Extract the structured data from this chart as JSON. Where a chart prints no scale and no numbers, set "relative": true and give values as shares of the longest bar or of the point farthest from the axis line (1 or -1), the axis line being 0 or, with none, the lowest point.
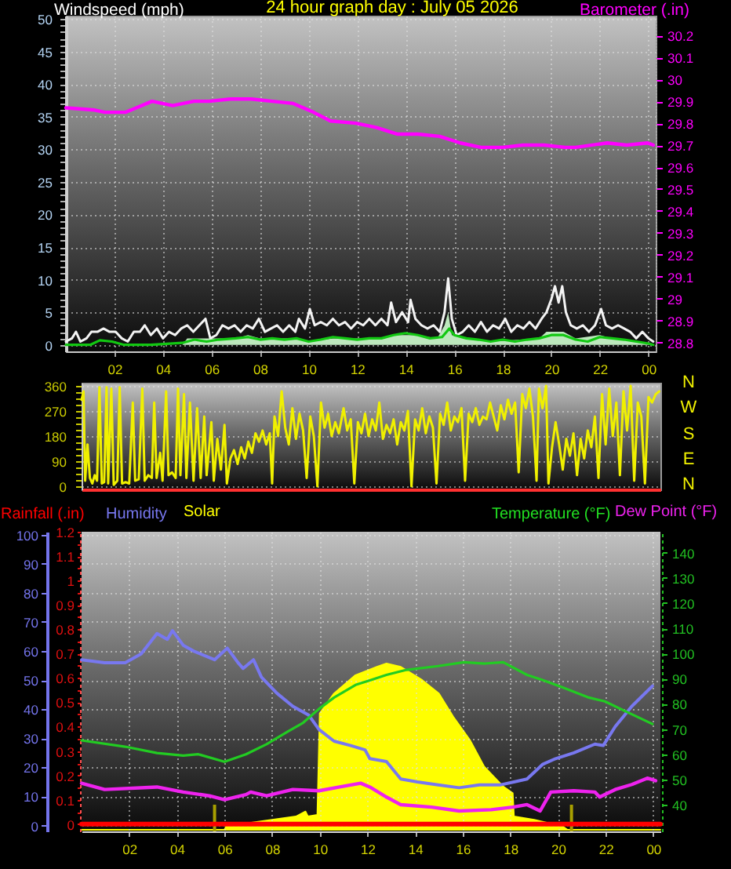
{
  "chart_data": [
    {
      "type": "line",
      "title": "24 hour graph day : July 05 2026",
      "ylabel": "Windspeed (mph)",
      "y2label": "Barometer (.in)",
      "series": [
        {
          "type": "area",
          "color": "#bde8bd",
          "x": [
            "2026-07-05T00:00",
            "2026-07-05T04:48",
            "2026-07-05T05:00",
            "2026-07-05T07:00",
            "2026-07-05T07:30",
            "2026-07-05T08:00",
            "2026-07-05T09:30",
            "2026-07-05T10:00",
            "2026-07-05T11:00",
            "2026-07-05T13:00",
            "2026-07-05T13:30",
            "2026-07-05T14:30",
            "2026-07-05T15:18",
            "2026-07-05T15:36",
            "2026-07-05T15:45",
            "2026-07-05T15:54",
            "2026-07-05T16:30",
            "2026-07-05T17:30",
            "2026-07-05T19:30",
            "2026-07-05T19:48",
            "2026-07-05T20:30",
            "2026-07-05T21:00",
            "2026-07-05T22:00",
            "2026-07-05T22:30",
            "2026-07-05T23:30",
            "2026-07-06T00:12"
          ],
          "values": [
            0,
            0,
            1,
            1,
            1.5,
            1,
            1,
            0.5,
            1,
            1,
            1.5,
            1.5,
            1,
            3,
            5,
            1.5,
            1,
            0.5,
            1,
            2,
            2,
            1,
            1.5,
            1,
            0.5,
            0
          ]
        },
        {
          "color": "#f4f4f4",
          "x": [
            "2026-07-05T00:00",
            "2026-07-05T00:15",
            "2026-07-05T00:25",
            "2026-07-05T00:36",
            "2026-07-05T00:51",
            "2026-07-05T01:03",
            "2026-07-05T01:18",
            "2026-07-05T01:33",
            "2026-07-05T01:48",
            "2026-07-05T02:03",
            "2026-07-05T02:18",
            "2026-07-05T02:33",
            "2026-07-05T02:48",
            "2026-07-05T03:03",
            "2026-07-05T03:15",
            "2026-07-05T03:30",
            "2026-07-05T03:45",
            "2026-07-05T04:00",
            "2026-07-05T04:15",
            "2026-07-05T04:30",
            "2026-07-05T04:45",
            "2026-07-05T05:00",
            "2026-07-05T05:15",
            "2026-07-05T05:30",
            "2026-07-05T05:45",
            "2026-07-05T05:57",
            "2026-07-05T06:12",
            "2026-07-05T06:27",
            "2026-07-05T06:42",
            "2026-07-05T06:57",
            "2026-07-05T07:12",
            "2026-07-05T07:27",
            "2026-07-05T07:42",
            "2026-07-05T07:57",
            "2026-07-05T08:12",
            "2026-07-05T08:27",
            "2026-07-05T08:42",
            "2026-07-05T08:57",
            "2026-07-05T09:12",
            "2026-07-05T09:27",
            "2026-07-05T09:36",
            "2026-07-05T09:51",
            "2026-07-05T10:03",
            "2026-07-05T10:15",
            "2026-07-05T10:30",
            "2026-07-05T10:45",
            "2026-07-05T11:00",
            "2026-07-05T11:15",
            "2026-07-05T11:30",
            "2026-07-05T11:45",
            "2026-07-05T12:00",
            "2026-07-05T12:15",
            "2026-07-05T12:30",
            "2026-07-05T12:45",
            "2026-07-05T13:00",
            "2026-07-05T13:15",
            "2026-07-05T13:24",
            "2026-07-05T13:36",
            "2026-07-05T13:51",
            "2026-07-05T14:06",
            "2026-07-05T14:12",
            "2026-07-05T14:24",
            "2026-07-05T14:39",
            "2026-07-05T14:54",
            "2026-07-05T15:09",
            "2026-07-05T15:24",
            "2026-07-05T15:36",
            "2026-07-05T15:45",
            "2026-07-05T15:54",
            "2026-07-05T16:06",
            "2026-07-05T16:21",
            "2026-07-05T16:36",
            "2026-07-05T16:51",
            "2026-07-05T17:06",
            "2026-07-05T17:21",
            "2026-07-05T17:36",
            "2026-07-05T17:51",
            "2026-07-05T18:06",
            "2026-07-05T18:21",
            "2026-07-05T18:36",
            "2026-07-05T18:51",
            "2026-07-05T19:06",
            "2026-07-05T19:21",
            "2026-07-05T19:36",
            "2026-07-05T19:48",
            "2026-07-05T20:00",
            "2026-07-05T20:09",
            "2026-07-05T20:18",
            "2026-07-05T20:27",
            "2026-07-05T20:36",
            "2026-07-05T20:48",
            "2026-07-05T21:03",
            "2026-07-05T21:18",
            "2026-07-05T21:33",
            "2026-07-05T21:48",
            "2026-07-05T22:03",
            "2026-07-05T22:15",
            "2026-07-05T22:30",
            "2026-07-05T22:45",
            "2026-07-05T23:00",
            "2026-07-05T23:15",
            "2026-07-05T23:30",
            "2026-07-05T23:45",
            "2026-07-06T00:00",
            "2026-07-06T00:12"
          ],
          "values": [
            0.5,
            1,
            2,
            0.5,
            1,
            2,
            2,
            2.5,
            2,
            2,
            1,
            0.5,
            2,
            2,
            3,
            1.5,
            2.5,
            1,
            2,
            1.5,
            2.5,
            3,
            2,
            3,
            4,
            1,
            1.5,
            3,
            2.5,
            3,
            2,
            3,
            2.5,
            4,
            2,
            2.5,
            3,
            2,
            3,
            2,
            4,
            2.5,
            5.5,
            3,
            3.5,
            3,
            4,
            3,
            3.5,
            2.5,
            3.5,
            3,
            4,
            3,
            4,
            3,
            6.5,
            3.5,
            5,
            3.5,
            6.9,
            4,
            3,
            2.5,
            3,
            2,
            5,
            10.2,
            4,
            1.5,
            2,
            3,
            2,
            3.5,
            2,
            3,
            2.5,
            4,
            2,
            3,
            2.5,
            3.5,
            2.5,
            4,
            5,
            7,
            9,
            6.5,
            9,
            5,
            3,
            2.5,
            3,
            2,
            3,
            5.5,
            3,
            2.5,
            3,
            2.5,
            2,
            1,
            2,
            1,
            0.5
          ]
        },
        {
          "color": "#12c812",
          "x": [
            "2026-07-05T00:00",
            "2026-07-05T01:00",
            "2026-07-05T01:24",
            "2026-07-05T01:54",
            "2026-07-05T02:24",
            "2026-07-05T03:30",
            "2026-07-05T04:48",
            "2026-07-05T05:18",
            "2026-07-05T05:48",
            "2026-07-05T06:18",
            "2026-07-05T07:00",
            "2026-07-05T07:30",
            "2026-07-05T08:00",
            "2026-07-05T08:30",
            "2026-07-05T09:00",
            "2026-07-05T09:30",
            "2026-07-05T10:00",
            "2026-07-05T10:30",
            "2026-07-05T11:00",
            "2026-07-05T11:30",
            "2026-07-05T12:00",
            "2026-07-05T12:30",
            "2026-07-05T13:00",
            "2026-07-05T13:30",
            "2026-07-05T14:00",
            "2026-07-05T14:30",
            "2026-07-05T15:00",
            "2026-07-05T15:30",
            "2026-07-05T15:48",
            "2026-07-05T16:00",
            "2026-07-05T16:30",
            "2026-07-05T17:00",
            "2026-07-05T17:30",
            "2026-07-05T18:00",
            "2026-07-05T18:30",
            "2026-07-05T19:00",
            "2026-07-05T19:30",
            "2026-07-05T20:00",
            "2026-07-05T20:30",
            "2026-07-05T21:00",
            "2026-07-05T21:30",
            "2026-07-05T22:00",
            "2026-07-05T22:30",
            "2026-07-05T23:00",
            "2026-07-05T23:30",
            "2026-07-06T00:00",
            "2026-07-06T00:12"
          ],
          "values": [
            0,
            0,
            0.7,
            0.5,
            0,
            0,
            0.3,
            0.8,
            0.5,
            0.8,
            1,
            1.2,
            0.8,
            1,
            0.8,
            1,
            0.5,
            0.8,
            1.2,
            1,
            0.8,
            1,
            1,
            1.5,
            1.8,
            1.5,
            1,
            1.2,
            2.5,
            1.5,
            1,
            0.8,
            0.5,
            0.8,
            0.5,
            0.8,
            1,
            1.5,
            1.5,
            0.8,
            0.5,
            1.2,
            1,
            0.8,
            0.5,
            0.2,
            0
          ]
        },
        {
          "color": "#ff00ff",
          "axis": "y2",
          "x": [
            "2026-07-05T00:00",
            "2026-07-05T01:11",
            "2026-07-05T01:36",
            "2026-07-05T02:28",
            "2026-07-05T02:54",
            "2026-07-05T03:33",
            "2026-07-05T04:24",
            "2026-07-05T05:16",
            "2026-07-05T05:54",
            "2026-07-05T06:47",
            "2026-07-05T07:38",
            "2026-07-05T08:30",
            "2026-07-05T09:22",
            "2026-07-05T10:12",
            "2026-07-05T10:54",
            "2026-07-05T11:57",
            "2026-07-05T12:48",
            "2026-07-05T13:40",
            "2026-07-05T14:30",
            "2026-07-05T15:24",
            "2026-07-05T16:15",
            "2026-07-05T17:06",
            "2026-07-05T18:00",
            "2026-07-05T18:50",
            "2026-07-05T19:42",
            "2026-07-05T20:34",
            "2026-07-05T21:00",
            "2026-07-05T22:18",
            "2026-07-05T23:06",
            "2026-07-05T23:58",
            "2026-07-06T00:12"
          ],
          "values": [
            29.87,
            29.86,
            29.85,
            29.85,
            29.87,
            29.9,
            29.88,
            29.9,
            29.9,
            29.91,
            29.91,
            29.9,
            29.89,
            29.85,
            29.81,
            29.8,
            29.78,
            29.75,
            29.75,
            29.74,
            29.71,
            29.69,
            29.69,
            29.7,
            29.7,
            29.69,
            29.69,
            29.71,
            29.7,
            29.71,
            29.7
          ]
        }
      ],
      "xlim": [
        "2026-07-05T00:00",
        "2026-07-06T00:18"
      ],
      "xticks": [
        {
          "value": "2026-07-05T02:00",
          "label": "02"
        },
        {
          "value": "2026-07-05T04:00",
          "label": "04"
        },
        {
          "value": "2026-07-05T06:00",
          "label": "06"
        },
        {
          "value": "2026-07-05T08:00",
          "label": "08"
        },
        {
          "value": "2026-07-05T10:00",
          "label": "10"
        },
        {
          "value": "2026-07-05T12:00",
          "label": "12"
        },
        {
          "value": "2026-07-05T14:00",
          "label": "14"
        },
        {
          "value": "2026-07-05T16:00",
          "label": "16"
        },
        {
          "value": "2026-07-05T18:00",
          "label": "18"
        },
        {
          "value": "2026-07-05T20:00",
          "label": "20"
        },
        {
          "value": "2026-07-05T22:00",
          "label": "22"
        },
        {
          "value": "2026-07-06T00:00",
          "label": "00"
        }
      ],
      "ylim": [
        -1,
        50.5
      ],
      "yticks": [
        0,
        {
          "value": 1,
          "label": null
        },
        {
          "value": 2,
          "label": null
        },
        {
          "value": 3,
          "label": null
        },
        {
          "value": 4,
          "label": null
        },
        5,
        {
          "value": 6,
          "label": null
        },
        {
          "value": 7,
          "label": null
        },
        {
          "value": 8,
          "label": null
        },
        {
          "value": 9,
          "label": null
        },
        10,
        {
          "value": 11,
          "label": null
        },
        {
          "value": 12,
          "label": null
        },
        {
          "value": 13,
          "label": null
        },
        {
          "value": 14,
          "label": null
        },
        15,
        {
          "value": 16,
          "label": null
        },
        {
          "value": 17,
          "label": null
        },
        {
          "value": 18,
          "label": null
        },
        {
          "value": 19,
          "label": null
        },
        20,
        {
          "value": 21,
          "label": null
        },
        {
          "value": 22,
          "label": null
        },
        {
          "value": 23,
          "label": null
        },
        {
          "value": 24,
          "label": null
        },
        25,
        {
          "value": 26,
          "label": null
        },
        {
          "value": 27,
          "label": null
        },
        {
          "value": 28,
          "label": null
        },
        {
          "value": 29,
          "label": null
        },
        30,
        {
          "value": 31,
          "label": null
        },
        {
          "value": 32,
          "label": null
        },
        {
          "value": 33,
          "label": null
        },
        {
          "value": 34,
          "label": null
        },
        35,
        {
          "value": 36,
          "label": null
        },
        {
          "value": 37,
          "label": null
        },
        {
          "value": 38,
          "label": null
        },
        {
          "value": 39,
          "label": null
        },
        40,
        {
          "value": 41,
          "label": null
        },
        {
          "value": 42,
          "label": null
        },
        {
          "value": 43,
          "label": null
        },
        {
          "value": 44,
          "label": null
        },
        45,
        {
          "value": 46,
          "label": null
        },
        {
          "value": 47,
          "label": null
        },
        {
          "value": 48,
          "label": null
        },
        {
          "value": 49,
          "label": null
        },
        50
      ],
      "y2lim": [
        28.76,
        30.29
      ],
      "y2ticks": [
        28.8,
        28.9,
        29,
        29.1,
        29.2,
        29.3,
        29.4,
        29.5,
        29.6,
        29.7,
        29.8,
        29.9,
        30,
        30.1,
        30.2
      ],
      "grid": true
    },
    {
      "type": "line",
      "series": [
        {
          "color": "#f0f000",
          "x": [
            "2026-07-05T00:00",
            "2026-07-05T00:05",
            "2026-07-05T00:09",
            "2026-07-05T00:15",
            "2026-07-05T00:21",
            "2026-07-05T00:27",
            "2026-07-05T00:33",
            "2026-07-05T00:39",
            "2026-07-05T00:45",
            "2026-07-05T00:51",
            "2026-07-05T00:57",
            "2026-07-05T01:03",
            "2026-07-05T01:07",
            "2026-07-05T01:15",
            "2026-07-05T01:21",
            "2026-07-05T01:30",
            "2026-07-05T01:36",
            "2026-07-05T01:42",
            "2026-07-05T01:51",
            "2026-07-05T02:00",
            "2026-07-05T02:09",
            "2026-07-05T02:15",
            "2026-07-05T02:24",
            "2026-07-05T02:33",
            "2026-07-05T02:39",
            "2026-07-05T02:48",
            "2026-07-05T02:57",
            "2026-07-05T03:03",
            "2026-07-05T03:09",
            "2026-07-05T03:18",
            "2026-07-05T03:24",
            "2026-07-05T03:33",
            "2026-07-05T03:39",
            "2026-07-05T03:48",
            "2026-07-05T03:57",
            "2026-07-05T04:03",
            "2026-07-05T04:09",
            "2026-07-05T04:18",
            "2026-07-05T04:24",
            "2026-07-05T04:33",
            "2026-07-05T04:42",
            "2026-07-05T04:51",
            "2026-07-05T05:00",
            "2026-07-05T05:09",
            "2026-07-05T05:15",
            "2026-07-05T05:27",
            "2026-07-05T05:33",
            "2026-07-05T05:42",
            "2026-07-05T05:51",
            "2026-07-05T06:00",
            "2026-07-05T06:06",
            "2026-07-05T06:15",
            "2026-07-05T06:24",
            "2026-07-05T06:33",
            "2026-07-05T06:42",
            "2026-07-05T06:51",
            "2026-07-05T07:00",
            "2026-07-05T07:09",
            "2026-07-05T07:18",
            "2026-07-05T07:27",
            "2026-07-05T07:36",
            "2026-07-05T07:45",
            "2026-07-05T07:54",
            "2026-07-05T08:00",
            "2026-07-05T08:06",
            "2026-07-05T08:15",
            "2026-07-05T08:24",
            "2026-07-05T08:33",
            "2026-07-05T08:42",
            "2026-07-05T08:51",
            "2026-07-05T09:00",
            "2026-07-05T09:09",
            "2026-07-05T09:18",
            "2026-07-05T09:27",
            "2026-07-05T09:36",
            "2026-07-05T09:45",
            "2026-07-05T09:54",
            "2026-07-05T10:03",
            "2026-07-05T10:12",
            "2026-07-05T10:21",
            "2026-07-05T10:30",
            "2026-07-05T10:39",
            "2026-07-05T10:48",
            "2026-07-05T11:00",
            "2026-07-05T11:09",
            "2026-07-05T11:18",
            "2026-07-05T11:27",
            "2026-07-05T11:36",
            "2026-07-05T11:45",
            "2026-07-05T11:54",
            "2026-07-05T12:03",
            "2026-07-05T12:12",
            "2026-07-05T12:21",
            "2026-07-05T12:30",
            "2026-07-05T12:39",
            "2026-07-05T12:48",
            "2026-07-05T12:57",
            "2026-07-05T13:06",
            "2026-07-05T13:15",
            "2026-07-05T13:24",
            "2026-07-05T13:33",
            "2026-07-05T13:42",
            "2026-07-05T13:51",
            "2026-07-05T14:00",
            "2026-07-05T14:09",
            "2026-07-05T14:18",
            "2026-07-05T14:27",
            "2026-07-05T14:36",
            "2026-07-05T14:45",
            "2026-07-05T14:54",
            "2026-07-05T15:03",
            "2026-07-05T15:12",
            "2026-07-05T15:21",
            "2026-07-05T15:30",
            "2026-07-05T15:39",
            "2026-07-05T15:48",
            "2026-07-05T15:57",
            "2026-07-05T16:06",
            "2026-07-05T16:15",
            "2026-07-05T16:24",
            "2026-07-05T16:33",
            "2026-07-05T16:42",
            "2026-07-05T16:51",
            "2026-07-05T17:00",
            "2026-07-05T17:09",
            "2026-07-05T17:18",
            "2026-07-05T17:27",
            "2026-07-05T17:36",
            "2026-07-05T17:45",
            "2026-07-05T17:54",
            "2026-07-05T18:03",
            "2026-07-05T18:12",
            "2026-07-05T18:21",
            "2026-07-05T18:30",
            "2026-07-05T18:39",
            "2026-07-05T18:48",
            "2026-07-05T18:57",
            "2026-07-05T19:06",
            "2026-07-05T19:12",
            "2026-07-05T19:21",
            "2026-07-05T19:30",
            "2026-07-05T19:36",
            "2026-07-05T19:45",
            "2026-07-05T19:54",
            "2026-07-05T20:03",
            "2026-07-05T20:12",
            "2026-07-05T20:21",
            "2026-07-05T20:30",
            "2026-07-05T20:39",
            "2026-07-05T20:48",
            "2026-07-05T20:57",
            "2026-07-05T21:06",
            "2026-07-05T21:15",
            "2026-07-05T21:24",
            "2026-07-05T21:33",
            "2026-07-05T21:42",
            "2026-07-05T21:51",
            "2026-07-05T22:00",
            "2026-07-05T22:09",
            "2026-07-05T22:18",
            "2026-07-05T22:27",
            "2026-07-05T22:36",
            "2026-07-05T22:45",
            "2026-07-05T22:54",
            "2026-07-05T23:03",
            "2026-07-05T23:12",
            "2026-07-05T23:21",
            "2026-07-05T23:30",
            "2026-07-05T23:39",
            "2026-07-05T23:48",
            "2026-07-05T23:57",
            "2026-07-06T00:06",
            "2026-07-06T00:15"
          ],
          "values": [
            310,
            340,
            20,
            150,
            30,
            10,
            40,
            20,
            355,
            10,
            15,
            355,
            10,
            350,
            5,
            20,
            355,
            10,
            15,
            10,
            300,
            20,
            25,
            350,
            20,
            40,
            30,
            300,
            30,
            120,
            20,
            340,
            40,
            50,
            30,
            350,
            40,
            330,
            30,
            300,
            20,
            280,
            30,
            250,
            40,
            230,
            20,
            170,
            60,
            220,
            10,
            100,
            130,
            80,
            140,
            100,
            160,
            120,
            190,
            160,
            200,
            150,
            190,
            10,
            250,
            180,
            340,
            210,
            150,
            280,
            170,
            260,
            200,
            30,
            250,
            180,
            0,
            300,
            210,
            260,
            180,
            230,
            190,
            280,
            200,
            240,
            10,
            230,
            190,
            260,
            180,
            240,
            200,
            300,
            170,
            220,
            190,
            240,
            150,
            230,
            200,
            270,
            0,
            240,
            200,
            280,
            190,
            250,
            210,
            10,
            260,
            220,
            300,
            200,
            250,
            230,
            280,
            20,
            260,
            230,
            280,
            220,
            250,
            240,
            300,
            250,
            200,
            290,
            240,
            310,
            260,
            300,
            50,
            330,
            280,
            350,
            250,
            20,
            350,
            280,
            360,
            10,
            140,
            230,
            150,
            60,
            170,
            110,
            190,
            40,
            170,
            100,
            200,
            140,
            250,
            30,
            330,
            150,
            350,
            180,
            300,
            40,
            340,
            200,
            360,
            20,
            300,
            250,
            10,
            320,
            300,
            330,
            340
          ]
        }
      ],
      "xlim": [
        "2026-07-05T00:00",
        "2026-07-06T00:18"
      ],
      "ylim": [
        -11,
        371
      ],
      "yticks": [
        0,
        {
          "value": 22.5,
          "label": null
        },
        {
          "value": 45,
          "label": null
        },
        {
          "value": 67.5,
          "label": null
        },
        90,
        {
          "value": 112.5,
          "label": null
        },
        {
          "value": 135,
          "label": null
        },
        {
          "value": 157.5,
          "label": null
        },
        180,
        {
          "value": 202.5,
          "label": null
        },
        {
          "value": 225,
          "label": null
        },
        {
          "value": 247.5,
          "label": null
        },
        270,
        {
          "value": 292.5,
          "label": null
        },
        {
          "value": 315,
          "label": null
        },
        {
          "value": 337.5,
          "label": null
        },
        360
      ],
      "annotations": [
        "N",
        "W",
        "S",
        "E",
        "N"
      ],
      "tick_labels": "y",
      "grid": "y"
    },
    {
      "type": "line",
      "ylabel": "Humidity",
      "y2label": "Temperature (°F)",
      "y3label": "Rainfall (.in)",
      "series": [
        {
          "color": "#7878f0",
          "x": [
            "2026-07-05T00:00",
            "2026-07-05T00:58",
            "2026-07-05T01:50",
            "2026-07-05T02:30",
            "2026-07-05T03:10",
            "2026-07-05T03:36",
            "2026-07-05T03:49",
            "2026-07-05T04:16",
            "2026-07-05T04:42",
            "2026-07-05T05:35",
            "2026-07-05T06:07",
            "2026-07-05T06:34",
            "2026-07-05T06:47",
            "2026-07-05T07:13",
            "2026-07-05T07:33",
            "2026-07-05T08:12",
            "2026-07-05T08:52",
            "2026-07-05T09:32",
            "2026-07-05T09:58",
            "2026-07-05T10:36",
            "2026-07-05T11:18",
            "2026-07-05T11:54",
            "2026-07-05T12:06",
            "2026-07-05T12:48",
            "2026-07-05T13:24",
            "2026-07-05T14:06",
            "2026-07-05T14:58",
            "2026-07-05T15:51",
            "2026-07-05T16:42",
            "2026-07-05T17:36",
            "2026-07-05T18:09",
            "2026-07-05T18:42",
            "2026-07-05T19:21",
            "2026-07-05T19:54",
            "2026-07-05T20:40",
            "2026-07-05T21:33",
            "2026-07-05T21:54",
            "2026-07-05T22:24",
            "2026-07-05T23:06",
            "2026-07-05T23:58"
          ],
          "values": [
            57,
            56,
            56,
            59,
            66,
            64,
            67,
            62,
            60,
            57,
            61,
            56,
            54,
            57,
            51,
            45.5,
            41,
            38,
            33,
            29,
            27.5,
            26,
            23,
            22,
            16,
            15,
            14,
            13,
            14,
            14,
            15,
            16,
            21,
            23,
            25,
            28,
            27.5,
            34,
            41,
            48
          ]
        },
        {
          "color": "#ff0000",
          "axis": "y3",
          "x": [
            "2026-07-05T00:00",
            "2026-07-06T00:18"
          ],
          "values": [
            0,
            0
          ]
        },
        {
          "color": "#22cc22",
          "axis": "y2",
          "x": [
            "2026-07-05T00:00",
            "2026-07-05T01:50",
            "2026-07-05T03:10",
            "2026-07-05T04:16",
            "2026-07-05T04:54",
            "2026-07-05T06:00",
            "2026-07-05T06:54",
            "2026-07-05T07:46",
            "2026-07-05T08:39",
            "2026-07-05T09:18",
            "2026-07-05T09:58",
            "2026-07-05T10:36",
            "2026-07-05T11:30",
            "2026-07-05T12:09",
            "2026-07-05T12:48",
            "2026-07-05T13:39",
            "2026-07-05T14:58",
            "2026-07-05T16:03",
            "2026-07-05T16:56",
            "2026-07-05T17:42",
            "2026-07-05T18:42",
            "2026-07-05T19:21",
            "2026-07-05T20:12",
            "2026-07-05T21:18",
            "2026-07-05T21:58",
            "2026-07-05T22:51",
            "2026-07-05T23:58"
          ],
          "values": [
            65.5,
            63,
            60.5,
            59.5,
            60,
            57,
            60,
            64,
            69,
            72.5,
            78,
            82.5,
            87.5,
            89.5,
            91.5,
            93.5,
            95,
            96.5,
            96,
            96.5,
            91.5,
            89.5,
            86.5,
            82.5,
            81,
            77,
            72
          ]
        },
        {
          "name": "Dew Point (°F)",
          "color": "#ee22ee",
          "axis": "y2",
          "x": [
            "2026-07-05T00:00",
            "2026-07-05T00:58",
            "2026-07-05T03:10",
            "2026-07-05T04:16",
            "2026-07-05T05:22",
            "2026-07-05T06:00",
            "2026-07-05T06:54",
            "2026-07-05T07:06",
            "2026-07-05T07:46",
            "2026-07-05T08:52",
            "2026-07-05T09:58",
            "2026-07-05T10:50",
            "2026-07-05T11:43",
            "2026-07-05T12:06",
            "2026-07-05T12:48",
            "2026-07-05T13:24",
            "2026-07-05T14:42",
            "2026-07-05T15:51",
            "2026-07-05T17:12",
            "2026-07-05T18:06",
            "2026-07-05T18:42",
            "2026-07-05T19:15",
            "2026-07-05T19:42",
            "2026-07-05T20:40",
            "2026-07-05T21:33",
            "2026-07-05T21:45",
            "2026-07-05T22:24",
            "2026-07-05T23:06",
            "2026-07-05T23:45",
            "2026-07-06T00:06"
          ],
          "values": [
            48.5,
            46,
            47,
            45,
            43.5,
            42,
            44,
            45,
            43.5,
            46,
            45.5,
            47,
            48.5,
            47,
            43,
            40,
            39,
            37.5,
            38,
            39,
            40,
            37.5,
            45,
            45.5,
            45,
            43,
            46,
            48,
            50.5,
            49.5
          ]
        }
      ],
      "xlim": [
        "2026-07-05T00:00",
        "2026-07-06T00:18"
      ],
      "xticks": [
        {
          "value": "2026-07-05T02:00",
          "label": "02"
        },
        {
          "value": "2026-07-05T04:00",
          "label": "04"
        },
        {
          "value": "2026-07-05T06:00",
          "label": "06"
        },
        {
          "value": "2026-07-05T08:00",
          "label": "08"
        },
        {
          "value": "2026-07-05T10:00",
          "label": "10"
        },
        {
          "value": "2026-07-05T12:00",
          "label": "12"
        },
        {
          "value": "2026-07-05T14:00",
          "label": "14"
        },
        {
          "value": "2026-07-05T16:00",
          "label": "16"
        },
        {
          "value": "2026-07-05T18:00",
          "label": "18"
        },
        {
          "value": "2026-07-05T20:00",
          "label": "20"
        },
        {
          "value": "2026-07-05T22:00",
          "label": "22"
        },
        {
          "value": "2026-07-06T00:00",
          "label": "00"
        }
      ],
      "ylim": [
        -2,
        101
      ],
      "yticks": [
        0,
        10,
        20,
        30,
        40,
        50,
        60,
        70,
        80,
        90,
        100
      ],
      "y2lim": [
        29.4,
        148.3
      ],
      "y2ticks": [
        40,
        50,
        60,
        70,
        80,
        90,
        100,
        110,
        120,
        130,
        140
      ],
      "y3lim": [
        -0.03,
        1.2
      ],
      "y3ticks": [
        0,
        {
          "value": 0.05,
          "label": null
        },
        0.1,
        {
          "value": 0.15,
          "label": null
        },
        0.2,
        {
          "value": 0.25,
          "label": null
        },
        0.3,
        {
          "value": 0.35,
          "label": null
        },
        0.4,
        {
          "value": 0.45,
          "label": null
        },
        0.5,
        {
          "value": 0.55,
          "label": null
        },
        0.6,
        {
          "value": 0.65,
          "label": null
        },
        0.7,
        {
          "value": 0.75,
          "label": null
        },
        0.8,
        {
          "value": 0.85,
          "label": null
        },
        0.9,
        {
          "value": 0.95,
          "label": null
        },
        1,
        {
          "value": 1.05,
          "label": null
        },
        1.1,
        {
          "value": 1.15,
          "label": null
        },
        1.2
      ],
      "grid": true
    },
    {
      "type": "area",
      "relative": true,
      "series": [
        {
          "name": "Solar",
          "color": "#ffff00",
          "x": [
            "2026-07-05T00:00",
            "2026-07-05T06:00",
            "2026-07-05T06:06",
            "2026-07-05T07:00",
            "2026-07-05T08:00",
            "2026-07-05T09:00",
            "2026-07-05T09:24",
            "2026-07-05T09:30",
            "2026-07-05T09:54",
            "2026-07-05T10:00",
            "2026-07-05T10:36",
            "2026-07-05T11:30",
            "2026-07-05T12:24",
            "2026-07-05T12:48",
            "2026-07-05T13:24",
            "2026-07-05T14:18",
            "2026-07-05T15:00",
            "2026-07-05T15:36",
            "2026-07-05T16:18",
            "2026-07-05T16:54",
            "2026-07-05T17:42",
            "2026-07-05T18:06",
            "2026-07-05T18:09",
            "2026-07-05T19:00",
            "2026-07-05T20:12",
            "2026-07-05T20:24",
            "2026-07-06T00:18"
          ],
          "values": [
            0,
            0,
            0.03,
            0.04,
            0.06,
            0.08,
            0.11,
            0.08,
            0.09,
            0.7,
            0.82,
            0.93,
            0.98,
            1,
            0.98,
            0.9,
            0.82,
            0.68,
            0.54,
            0.38,
            0.26,
            0.22,
            0.08,
            0.06,
            0.02,
            0,
            0
          ]
        }
      ],
      "xlim": [
        "2026-07-05T00:00",
        "2026-07-06T00:18"
      ],
      "tick_labels": false,
      "ref_lines": [
        {
          "axis": "x",
          "value": "2026-07-05T05:35",
          "color": "#a8a000"
        },
        {
          "axis": "x",
          "value": "2026-07-05T20:34",
          "color": "#a8a000"
        }
      ]
    }
  ]
}
